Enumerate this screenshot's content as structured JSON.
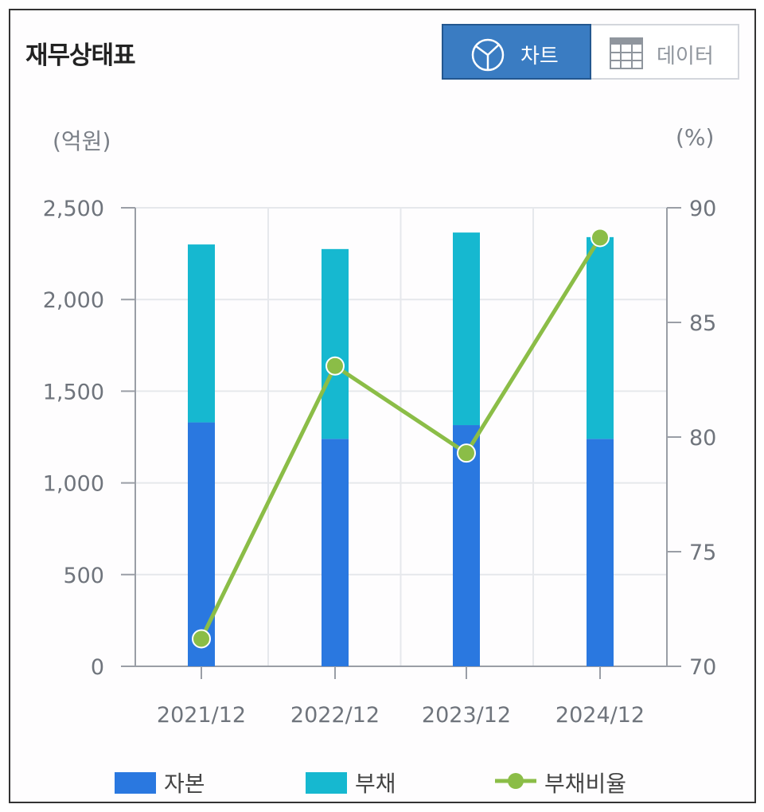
{
  "header": {
    "title": "재무상태표",
    "toggle_chart_label": "차트",
    "toggle_data_label": "데이터"
  },
  "units": {
    "left": "(억원)",
    "right": "(%)"
  },
  "colors": {
    "capital": "#2a78e0",
    "debt": "#16b8d0",
    "ratio": "#8bbd47",
    "toggle_active": "#3a7cc2"
  },
  "icons": {
    "chart_toggle": "pie-chart-icon",
    "data_toggle": "table-grid-icon"
  },
  "chart_data": {
    "type": "bar",
    "stacked": true,
    "categories": [
      "2021/12",
      "2022/12",
      "2023/12",
      "2024/12"
    ],
    "series": [
      {
        "name": "자본",
        "values": [
          1330,
          1240,
          1315,
          1240
        ]
      },
      {
        "name": "부채",
        "values": [
          970,
          1035,
          1050,
          1100
        ]
      }
    ],
    "line_series": [
      {
        "name": "부채비율",
        "axis": "right",
        "values": [
          71.2,
          83.1,
          79.3,
          88.7
        ]
      }
    ],
    "y_left": {
      "min": 0,
      "max": 2500,
      "ticks": [
        0,
        500,
        1000,
        1500,
        2000,
        2500
      ],
      "tick_labels": [
        "0",
        "500",
        "1,000",
        "1,500",
        "2,000",
        "2,500"
      ]
    },
    "y_right": {
      "min": 70,
      "max": 90,
      "ticks": [
        70,
        75,
        80,
        85,
        90
      ],
      "tick_labels": [
        "70",
        "75",
        "80",
        "85",
        "90"
      ]
    },
    "grid": true,
    "legend": [
      "자본",
      "부채",
      "부채비율"
    ],
    "legend_position": "bottom"
  }
}
